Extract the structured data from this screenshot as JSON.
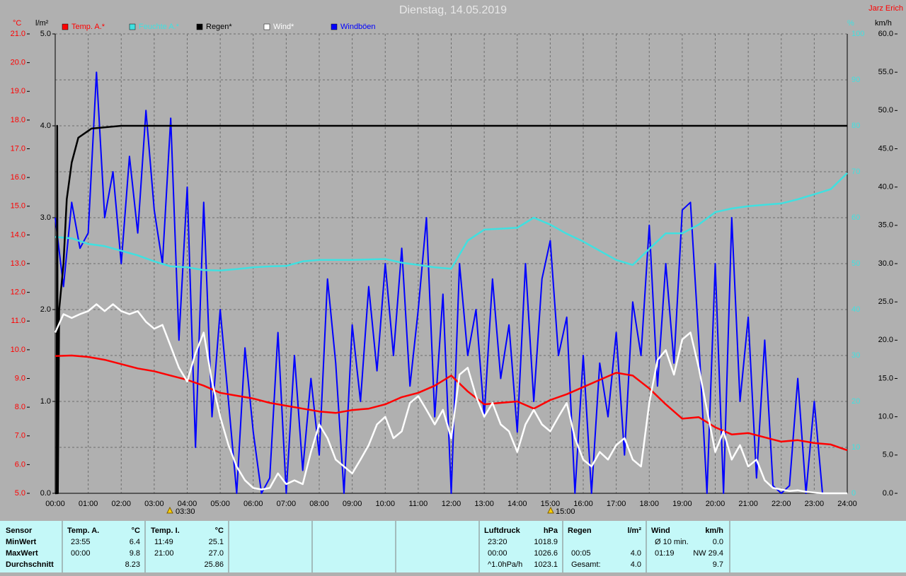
{
  "chart_data": {
    "type": "line",
    "title": "Dienstag, 14.05.2019",
    "author": "Jarz Erich",
    "y_label": "°C",
    "y2_label": "l/m²",
    "y3_label": "%",
    "y4_label": "km/h",
    "xlim": [
      0,
      24
    ],
    "xticks": [
      {
        "value": 0,
        "label": "00:00"
      },
      {
        "value": 1,
        "label": "01:00"
      },
      {
        "value": 2,
        "label": "02:00"
      },
      {
        "value": 3,
        "label": "03:00"
      },
      {
        "value": 4,
        "label": "04:00"
      },
      {
        "value": 5,
        "label": "05:00"
      },
      {
        "value": 6,
        "label": "06:00"
      },
      {
        "value": 7,
        "label": "07:00"
      },
      {
        "value": 8,
        "label": "08:00"
      },
      {
        "value": 9,
        "label": "09:00"
      },
      {
        "value": 10,
        "label": "10:00"
      },
      {
        "value": 11,
        "label": "11:00"
      },
      {
        "value": 12,
        "label": "12:00"
      },
      {
        "value": 13,
        "label": "13:00"
      },
      {
        "value": 14,
        "label": "14:00"
      },
      {
        "value": 15,
        "label": "15:00"
      },
      {
        "value": 16,
        "label": "16:00"
      },
      {
        "value": 17,
        "label": "17:00"
      },
      {
        "value": 18,
        "label": "18:00"
      },
      {
        "value": 19,
        "label": "19:00"
      },
      {
        "value": 20,
        "label": "20:00"
      },
      {
        "value": 21,
        "label": "21:00"
      },
      {
        "value": 22,
        "label": "22:00"
      },
      {
        "value": 23,
        "label": "23:00"
      },
      {
        "value": 24,
        "label": "24:00"
      }
    ],
    "sun_events": [
      "03:30",
      "15:00"
    ],
    "ylim": [
      5,
      21
    ],
    "yticks": [
      {
        "value": 5,
        "label": "5.0"
      },
      {
        "value": 6,
        "label": "6.0"
      },
      {
        "value": 7,
        "label": "7.0"
      },
      {
        "value": 8,
        "label": "8.0"
      },
      {
        "value": 9,
        "label": "9.0"
      },
      {
        "value": 10,
        "label": "10.0"
      },
      {
        "value": 11,
        "label": "11.0"
      },
      {
        "value": 12,
        "label": "12.0"
      },
      {
        "value": 13,
        "label": "13.0"
      },
      {
        "value": 14,
        "label": "14.0"
      },
      {
        "value": 15,
        "label": "15.0"
      },
      {
        "value": 16,
        "label": "16.0"
      },
      {
        "value": 17,
        "label": "17.0"
      },
      {
        "value": 18,
        "label": "18.0"
      },
      {
        "value": 19,
        "label": "19.0"
      },
      {
        "value": 20,
        "label": "20.0"
      },
      {
        "value": 21,
        "label": "21.0"
      }
    ],
    "y2lim": [
      0,
      5
    ],
    "y2ticks": [
      {
        "value": 0,
        "label": "0.0"
      },
      {
        "value": 1,
        "label": "1.0"
      },
      {
        "value": 2,
        "label": "2.0"
      },
      {
        "value": 3,
        "label": "3.0"
      },
      {
        "value": 4,
        "label": "4.0"
      },
      {
        "value": 5,
        "label": "5.0"
      }
    ],
    "y3lim": [
      0,
      100
    ],
    "y3ticks": [
      0,
      10,
      20,
      30,
      40,
      50,
      60,
      70,
      80,
      90,
      100
    ],
    "y4lim": [
      0,
      60
    ],
    "y4ticks": [
      {
        "value": 0,
        "label": "0.0"
      },
      {
        "value": 5,
        "label": "5.0"
      },
      {
        "value": 10,
        "label": "10.0"
      },
      {
        "value": 15,
        "label": "15.0"
      },
      {
        "value": 20,
        "label": "20.0"
      },
      {
        "value": 25,
        "label": "25.0"
      },
      {
        "value": 30,
        "label": "30.0"
      },
      {
        "value": 35,
        "label": "35.0"
      },
      {
        "value": 40,
        "label": "40.0"
      },
      {
        "value": 45,
        "label": "45.0"
      },
      {
        "value": 50,
        "label": "50.0"
      },
      {
        "value": 55,
        "label": "55.0"
      },
      {
        "value": 60,
        "label": "60.0"
      }
    ],
    "grid": true,
    "x": [
      0,
      0.25,
      0.5,
      0.75,
      1,
      1.25,
      1.5,
      1.75,
      2,
      2.25,
      2.5,
      2.75,
      3,
      3.25,
      3.5,
      3.75,
      4,
      4.25,
      4.5,
      4.75,
      5,
      5.25,
      5.5,
      5.75,
      6,
      6.25,
      6.5,
      6.75,
      7,
      7.25,
      7.5,
      7.75,
      8,
      8.25,
      8.5,
      8.75,
      9,
      9.25,
      9.5,
      9.75,
      10,
      10.25,
      10.5,
      10.75,
      11,
      11.25,
      11.5,
      11.75,
      12,
      12.25,
      12.5,
      12.75,
      13,
      13.25,
      13.5,
      13.75,
      14,
      14.25,
      14.5,
      14.75,
      15,
      15.25,
      15.5,
      15.75,
      16,
      16.25,
      16.5,
      16.75,
      17,
      17.25,
      17.5,
      17.75,
      18,
      18.25,
      18.5,
      18.75,
      19,
      19.25,
      19.5,
      19.75,
      20,
      20.25,
      20.5,
      20.75,
      21,
      21.25,
      21.5,
      21.75,
      22,
      22.25,
      22.5,
      22.75,
      23,
      23.25,
      23.5,
      23.75,
      24
    ],
    "series": [
      {
        "name": "Temp. A.*",
        "color": "#ff0000",
        "axis": "y",
        "x": [
          0,
          0.5,
          1,
          1.5,
          2,
          2.5,
          3,
          3.5,
          4,
          4.5,
          5,
          5.5,
          6,
          6.5,
          7,
          7.5,
          8,
          8.5,
          9,
          9.5,
          10,
          10.5,
          11,
          11.5,
          12,
          12.5,
          13,
          13.5,
          14,
          14.5,
          15,
          15.5,
          16,
          16.5,
          17,
          17.5,
          18,
          18.5,
          19,
          19.5,
          20,
          20.5,
          21,
          21.5,
          22,
          22.5,
          23,
          23.5,
          24
        ],
        "values": [
          9.78,
          9.8,
          9.75,
          9.65,
          9.5,
          9.35,
          9.25,
          9.1,
          8.95,
          8.75,
          8.5,
          8.4,
          8.3,
          8.15,
          8.05,
          7.95,
          7.85,
          7.8,
          7.9,
          7.95,
          8.1,
          8.35,
          8.5,
          8.75,
          9.1,
          8.55,
          8.1,
          8.15,
          8.2,
          7.95,
          8.25,
          8.45,
          8.7,
          8.95,
          9.2,
          9.1,
          8.65,
          8.1,
          7.6,
          7.65,
          7.3,
          7.05,
          7.1,
          6.95,
          6.8,
          6.85,
          6.75,
          6.7,
          6.5
        ]
      },
      {
        "name": "Feuchte A.*",
        "color": "#40e0e0",
        "axis": "y3",
        "x": [
          0,
          0.5,
          1,
          1.5,
          2,
          2.5,
          3,
          3.5,
          4,
          4.5,
          5,
          5.5,
          6,
          6.5,
          7,
          7.5,
          8,
          8.5,
          9,
          9.5,
          10,
          10.5,
          11,
          11.5,
          12,
          12.5,
          13,
          13.5,
          14,
          14.5,
          15,
          15.5,
          16,
          16.5,
          17,
          17.5,
          18,
          18.5,
          19,
          19.5,
          20,
          20.5,
          21,
          21.5,
          22,
          22.5,
          23,
          23.5,
          24
        ],
        "values": [
          55.8,
          55.5,
          54.3,
          53.8,
          52.8,
          51.8,
          50.5,
          49.4,
          49.2,
          48.6,
          48.5,
          48.8,
          49.2,
          49.4,
          49.5,
          50.5,
          50.8,
          50.8,
          50.8,
          50.9,
          51,
          50.2,
          49.7,
          49.2,
          48.9,
          55,
          57.4,
          57.6,
          57.8,
          60,
          58.5,
          56.5,
          54.8,
          52.8,
          50.8,
          49.7,
          53.2,
          56.6,
          56.6,
          58.5,
          61.2,
          62,
          62.5,
          62.8,
          63.1,
          64,
          65.1,
          66.2,
          69.7
        ]
      },
      {
        "name": "Regen*",
        "color": "#000000",
        "axis": "y2",
        "x": [
          0,
          0.04,
          0.06,
          0.08,
          0.12,
          0.25,
          0.35,
          0.5,
          0.7,
          1.1,
          2,
          24
        ],
        "values": [
          0,
          0,
          4.0,
          0,
          2.0,
          2.5,
          3.2,
          3.6,
          3.87,
          3.97,
          4.0,
          4.0
        ]
      },
      {
        "name": "Wind*",
        "color": "#ffffff",
        "axis": "y4",
        "values": [
          21,
          23.4,
          22.9,
          23.4,
          23.8,
          24.7,
          23.8,
          24.7,
          23.8,
          23.4,
          23.8,
          22.4,
          21.5,
          22,
          19.2,
          16.4,
          14.6,
          18.3,
          21,
          14.6,
          10,
          6.3,
          3.5,
          1.7,
          0.7,
          0.5,
          0.7,
          2.6,
          1.2,
          1.7,
          1.2,
          5.4,
          9,
          7.2,
          4.4,
          3.5,
          2.6,
          4.4,
          6.3,
          9,
          10,
          7.2,
          8.1,
          11.8,
          12.7,
          10.9,
          9,
          10.9,
          7.2,
          15.5,
          16.4,
          12.7,
          10,
          11.8,
          9,
          8.1,
          5.4,
          9,
          10.9,
          9,
          8.1,
          10,
          11.8,
          7.2,
          4.4,
          3.5,
          5.4,
          4.4,
          6.3,
          7.2,
          4.4,
          3.5,
          11.8,
          17.4,
          18.7,
          15.5,
          20.1,
          21,
          16.4,
          10.9,
          5.4,
          8.1,
          4.4,
          6.3,
          3.5,
          4.4,
          1.7,
          0.7,
          0.5,
          0.3,
          0.4,
          0.2,
          0.1,
          0,
          0,
          0,
          0
        ]
      },
      {
        "name": "Windböen",
        "color": "#0000ff",
        "axis": "y4",
        "values": [
          36,
          27,
          38,
          32,
          34,
          55,
          36,
          42,
          30,
          44,
          34,
          50,
          37,
          30,
          49,
          20,
          40,
          6,
          38,
          10,
          24,
          12,
          0,
          19,
          8,
          0,
          2,
          21,
          0,
          18,
          3,
          15,
          5,
          28,
          17,
          0,
          22,
          12,
          27,
          16,
          30,
          18,
          32,
          14,
          24,
          36,
          10,
          26,
          0,
          30,
          18,
          24,
          10,
          28,
          15,
          22,
          8,
          30,
          12,
          28,
          33,
          18,
          23,
          0,
          18,
          0,
          17,
          10,
          21,
          5,
          25,
          18,
          35,
          14,
          30,
          17,
          37,
          38,
          20,
          0,
          30,
          0,
          36,
          12,
          23,
          2,
          20,
          1,
          0,
          1,
          15,
          0,
          12,
          0,
          0,
          0,
          0
        ]
      }
    ]
  },
  "table": {
    "sensor": {
      "header": "Sensor",
      "rows": [
        "MinWert",
        "MaxWert",
        "Durchschnitt"
      ]
    },
    "groups": [
      {
        "header": "Temp. A.",
        "unit": "°C",
        "rows": [
          [
            "23:55",
            "6.4"
          ],
          [
            "00:00",
            "9.8"
          ],
          [
            null,
            "8.23"
          ]
        ]
      },
      {
        "header": "Temp. I.",
        "unit": "°C",
        "rows": [
          [
            "11:49",
            "25.1"
          ],
          [
            "21:00",
            "27.0"
          ],
          [
            null,
            "25.86"
          ]
        ]
      },
      {
        "header": "Luftdruck",
        "unit": "hPa",
        "rows": [
          [
            "23:20",
            "1018.9"
          ],
          [
            "00:00",
            "1026.6"
          ],
          [
            "^1.0hPa/h",
            "1023.1"
          ]
        ]
      },
      {
        "header": "Regen",
        "unit": "l/m²",
        "rows": [
          [
            null,
            null
          ],
          [
            "00:05",
            "4.0"
          ],
          [
            "Gesamt:",
            "4.0"
          ]
        ]
      },
      {
        "header": "Wind",
        "unit": "km/h",
        "rows": [
          [
            "Ø 10 min.",
            "0.0"
          ],
          [
            "01:19",
            "NW 29.4"
          ],
          [
            null,
            "9.7"
          ]
        ]
      }
    ]
  }
}
